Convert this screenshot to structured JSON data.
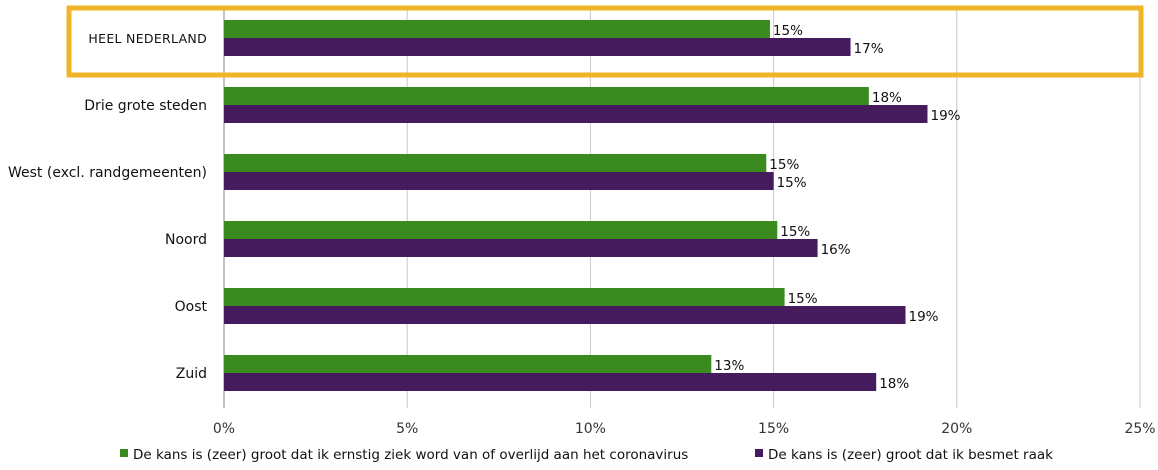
{
  "chart_data": {
    "type": "bar",
    "orientation": "horizontal",
    "categories": [
      "HEEL NEDERLAND",
      "Drie grote steden",
      "West (excl. randgemeenten)",
      "Noord",
      "Oost",
      "Zuid"
    ],
    "highlighted_category": "HEEL NEDERLAND",
    "series": [
      {
        "name": "De kans is (zeer) groot dat ik ernstig ziek word van of overlijd aan het coronavirus",
        "color": "#3a8a1f",
        "values": [
          15,
          18,
          15,
          15,
          15,
          13
        ],
        "labels": [
          "15%",
          "18%",
          "15%",
          "15%",
          "15%",
          "13%"
        ],
        "plotted": [
          14.9,
          17.6,
          14.8,
          15.1,
          15.3,
          13.3
        ]
      },
      {
        "name": "De kans is (zeer) groot dat ik besmet raak",
        "color": "#461b5e",
        "values": [
          17,
          19,
          15,
          16,
          19,
          18
        ],
        "labels": [
          "17%",
          "19%",
          "15%",
          "16%",
          "19%",
          "18%"
        ],
        "plotted": [
          17.1,
          19.2,
          15.0,
          16.2,
          18.6,
          17.8
        ]
      }
    ],
    "xlim": [
      0,
      25
    ],
    "xticks": [
      0,
      5,
      10,
      15,
      20,
      25
    ],
    "xtick_labels": [
      "0%",
      "5%",
      "10%",
      "15%",
      "20%",
      "25%"
    ],
    "grid": true,
    "legend_position": "bottom",
    "highlight_color": "#f0b429"
  }
}
